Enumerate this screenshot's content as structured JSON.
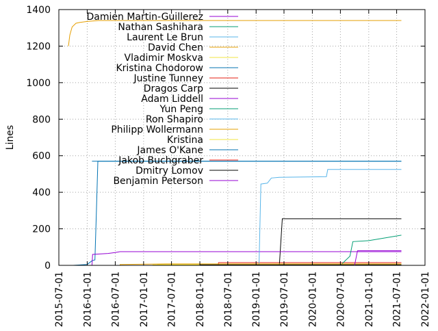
{
  "chart_data": {
    "type": "line",
    "title": "",
    "xlabel": "",
    "ylabel": "Lines",
    "x_axis": {
      "kind": "date",
      "range": [
        "2015-07-01",
        "2022-01-01"
      ],
      "ticks": [
        "2015-07-01",
        "2016-01-01",
        "2016-07-01",
        "2017-01-01",
        "2017-07-01",
        "2018-01-01",
        "2018-07-01",
        "2019-01-01",
        "2019-07-01",
        "2020-01-01",
        "2020-07-01",
        "2021-01-01",
        "2021-07-01",
        "2022-01-01"
      ]
    },
    "y_axis": {
      "range": [
        0,
        1400
      ],
      "ticks": [
        0,
        200,
        400,
        600,
        800,
        1000,
        1200,
        1400
      ]
    },
    "grid": "dotted",
    "legend_position": "top-right",
    "series": [
      {
        "name": "Damien Martin-Guillerez",
        "color": "#9400d3",
        "points": []
      },
      {
        "name": "Nathan Sashihara",
        "color": "#009e73",
        "points": []
      },
      {
        "name": "Laurent Le Brun",
        "color": "#56b4e9",
        "points": []
      },
      {
        "name": "David Chen",
        "color": "#e69f00",
        "points": [
          [
            "2015-09-01",
            1200
          ],
          [
            "2015-09-10",
            1260
          ],
          [
            "2015-09-25",
            1305
          ],
          [
            "2015-10-20",
            1325
          ],
          [
            "2015-11-15",
            1330
          ],
          [
            "2016-01-01",
            1335
          ],
          [
            "2016-03-15",
            1340
          ],
          [
            "2021-08-01",
            1340
          ]
        ]
      },
      {
        "name": "Vladimir Moskva",
        "color": "#f0e442",
        "points": [
          [
            "2017-04-01",
            0
          ],
          [
            "2017-04-02",
            4
          ],
          [
            "2021-08-01",
            4
          ]
        ]
      },
      {
        "name": "Kristina Chodorow",
        "color": "#0072b2",
        "points": [
          [
            "2015-10-01",
            0
          ],
          [
            "2016-01-01",
            5
          ],
          [
            "2016-02-01",
            25
          ],
          [
            "2016-02-20",
            30
          ],
          [
            "2016-03-01",
            300
          ],
          [
            "2016-03-10",
            570
          ],
          [
            "2021-08-01",
            570
          ]
        ]
      },
      {
        "name": "Justine Tunney",
        "color": "#e51e10",
        "points": [
          [
            "2018-05-01",
            0
          ],
          [
            "2018-05-02",
            15
          ],
          [
            "2021-08-01",
            15
          ]
        ]
      },
      {
        "name": "Dragos Carp",
        "color": "#000000",
        "points": [
          [
            "2019-06-01",
            0
          ],
          [
            "2019-06-20",
            255
          ],
          [
            "2021-08-01",
            255
          ]
        ]
      },
      {
        "name": "Adam Liddell",
        "color": "#9400d3",
        "points": [
          [
            "2016-02-01",
            0
          ],
          [
            "2016-02-05",
            60
          ],
          [
            "2016-05-15",
            65
          ],
          [
            "2016-07-01",
            70
          ],
          [
            "2016-08-01",
            75
          ],
          [
            "2021-08-01",
            75
          ]
        ]
      },
      {
        "name": "Yun Peng",
        "color": "#009e73",
        "points": [
          [
            "2020-07-01",
            0
          ],
          [
            "2020-09-01",
            50
          ],
          [
            "2020-09-20",
            130
          ],
          [
            "2021-01-01",
            135
          ],
          [
            "2021-08-01",
            165
          ]
        ]
      },
      {
        "name": "Ron Shapiro",
        "color": "#56b4e9",
        "points": [
          [
            "2019-01-20",
            0
          ],
          [
            "2019-02-01",
            445
          ],
          [
            "2019-03-15",
            450
          ],
          [
            "2019-04-10",
            478
          ],
          [
            "2019-06-01",
            482
          ],
          [
            "2020-04-01",
            485
          ],
          [
            "2020-04-10",
            525
          ],
          [
            "2021-08-01",
            525
          ]
        ]
      },
      {
        "name": "Philipp Wollermann",
        "color": "#e69f00",
        "points": [
          [
            "2016-08-01",
            0
          ],
          [
            "2016-08-02",
            5
          ],
          [
            "2017-06-01",
            8
          ],
          [
            "2021-08-01",
            8
          ]
        ]
      },
      {
        "name": "Kristina",
        "color": "#f0e442",
        "points": [
          [
            "2017-03-01",
            0
          ],
          [
            "2017-03-02",
            3
          ],
          [
            "2021-08-01",
            3
          ]
        ]
      },
      {
        "name": "James O'Kane",
        "color": "#0072b2",
        "points": [
          [
            "2016-02-01",
            570
          ],
          [
            "2021-08-01",
            570
          ]
        ]
      },
      {
        "name": "Jakob Buchgraber",
        "color": "#e51e10",
        "points": [
          [
            "2019-01-01",
            0
          ],
          [
            "2019-01-02",
            2
          ],
          [
            "2021-08-01",
            2
          ]
        ]
      },
      {
        "name": "Dmitry Lomov",
        "color": "#000000",
        "points": [
          [
            "2018-01-01",
            0
          ],
          [
            "2018-01-02",
            3
          ],
          [
            "2021-08-01",
            3
          ]
        ]
      },
      {
        "name": "Benjamin Peterson",
        "color": "#9400d3",
        "points": [
          [
            "2020-10-01",
            0
          ],
          [
            "2020-10-20",
            80
          ],
          [
            "2021-08-01",
            80
          ]
        ]
      }
    ]
  }
}
